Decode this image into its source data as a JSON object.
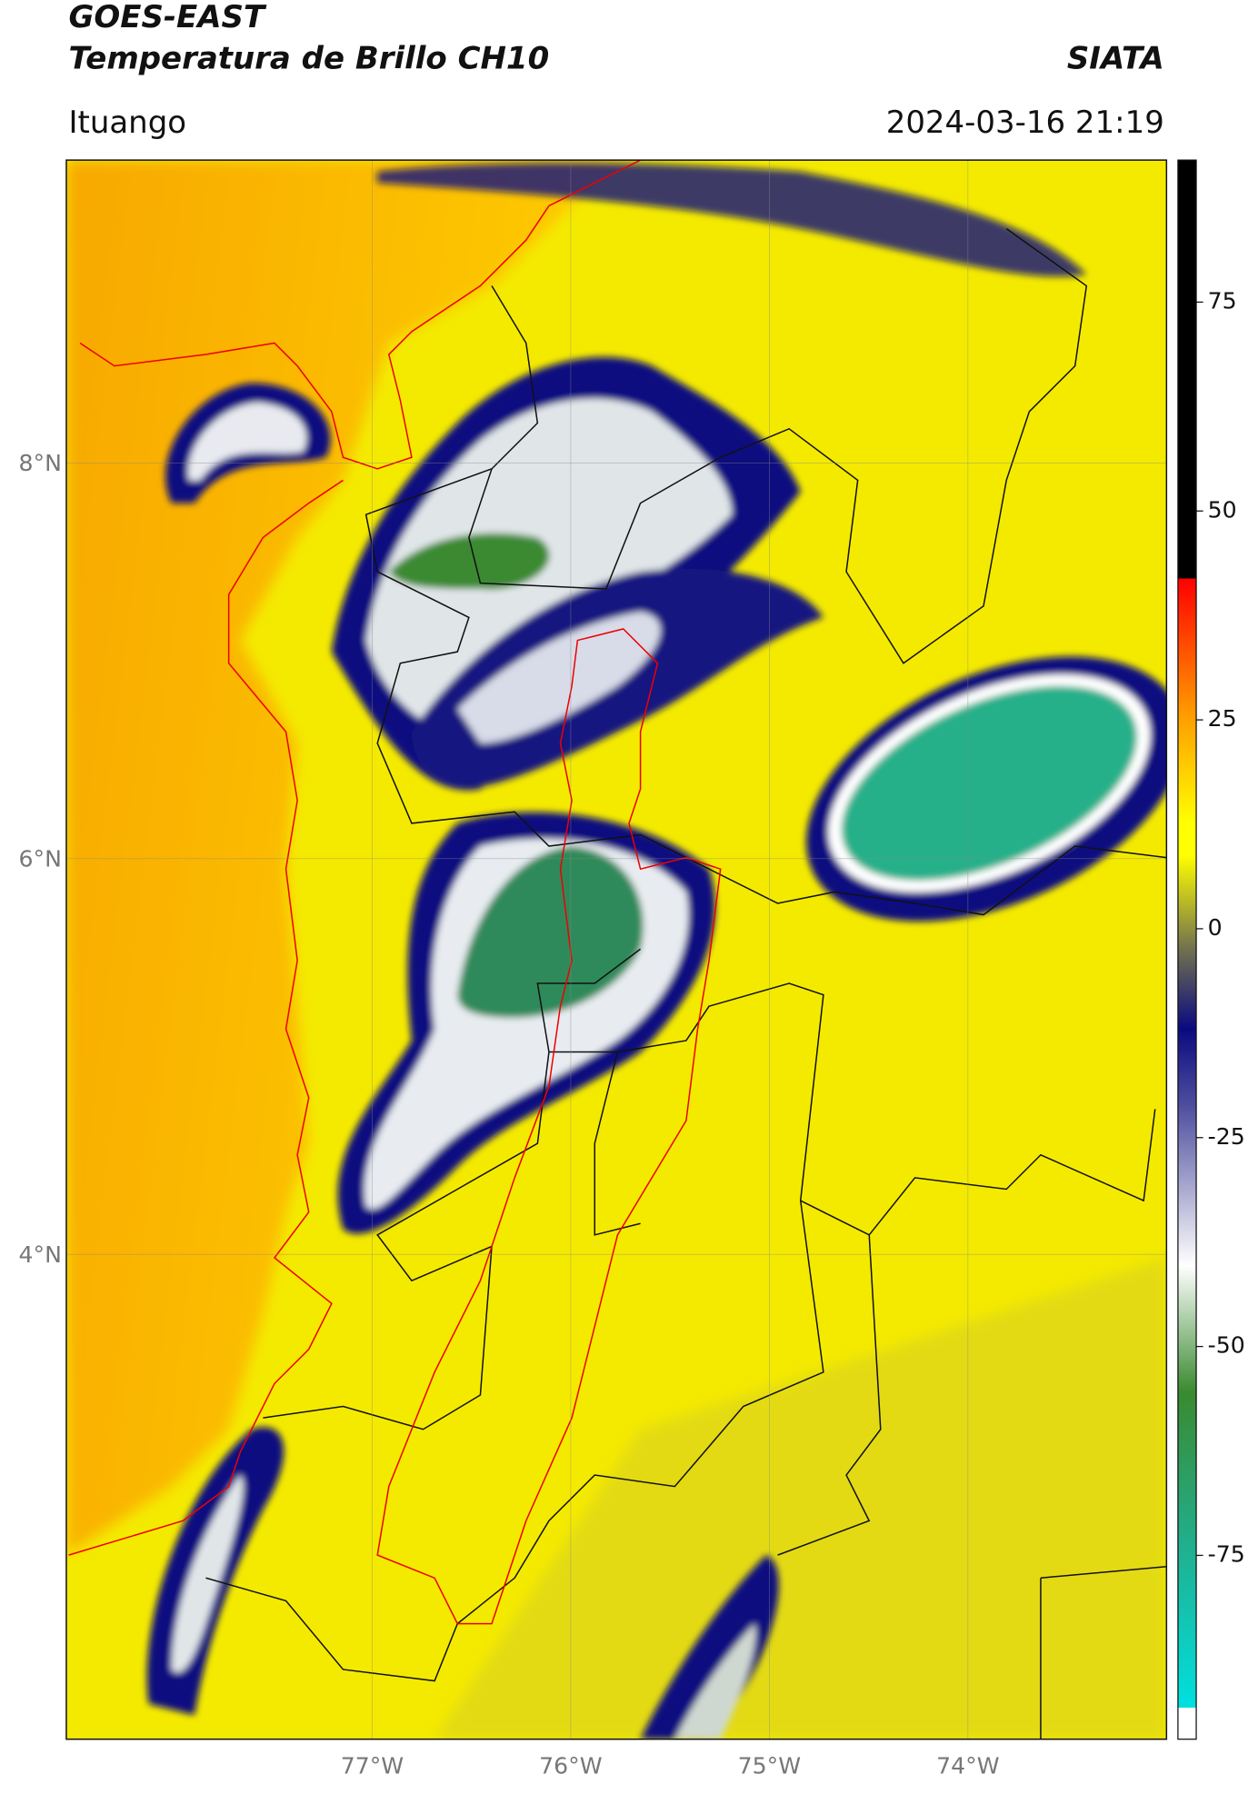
{
  "header": {
    "title": "GOES-EAST",
    "subtitle": "Temperatura de Brillo CH10",
    "org": "SIATA",
    "location": "Ituango",
    "datetime": "2024-03-16 21:19"
  },
  "map": {
    "xlim": [
      -78.54,
      -73.0
    ],
    "ylim": [
      1.55,
      9.53
    ],
    "xticks": [
      {
        "value": -77,
        "label": "77°W"
      },
      {
        "value": -76,
        "label": "76°W"
      },
      {
        "value": -75,
        "label": "75°W"
      },
      {
        "value": -74,
        "label": "74°W"
      }
    ],
    "yticks": [
      {
        "value": 8,
        "label": "8°N"
      },
      {
        "value": 6,
        "label": "6°N"
      },
      {
        "value": 4,
        "label": "4°N"
      }
    ],
    "grid": true
  },
  "colorbar": {
    "lim": [
      -97,
      92
    ],
    "ticks": [
      -75,
      -50,
      -25,
      0,
      25,
      50,
      75
    ]
  }
}
